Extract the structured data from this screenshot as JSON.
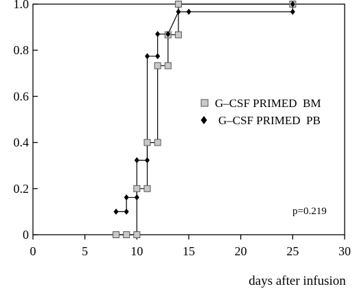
{
  "chart_data": {
    "type": "line",
    "step": "post",
    "title": "",
    "xlabel": "days after infusion",
    "ylabel": "",
    "xlim": [
      0,
      30
    ],
    "ylim": [
      0,
      1.0
    ],
    "xticks": [
      "0",
      "5",
      "10",
      "15",
      "20",
      "25",
      "30"
    ],
    "xtick_values": [
      0,
      5,
      10,
      15,
      20,
      25,
      30
    ],
    "yticks": [
      "0",
      "0.2",
      "0.4",
      "0.6",
      "0.8",
      "1.0"
    ],
    "ytick_values": [
      0,
      0.2,
      0.4,
      0.6,
      0.8,
      1.0
    ],
    "grid": false,
    "legend_position": "right",
    "annotation": "p=0.219",
    "series": [
      {
        "name": "G–CSF PRIMED  BM",
        "marker": "square",
        "color": "#c8c8c8",
        "points": [
          {
            "x": 8,
            "y": 0
          },
          {
            "x": 9,
            "y": 0
          },
          {
            "x": 10,
            "y": 0
          },
          {
            "x": 10,
            "y": 0.2
          },
          {
            "x": 11,
            "y": 0.2
          },
          {
            "x": 11,
            "y": 0.4
          },
          {
            "x": 12,
            "y": 0.4
          },
          {
            "x": 12,
            "y": 0.733
          },
          {
            "x": 13,
            "y": 0.733
          },
          {
            "x": 13,
            "y": 0.867
          },
          {
            "x": 14,
            "y": 0.867
          },
          {
            "x": 14,
            "y": 1.0
          },
          {
            "x": 25,
            "y": 1.0
          }
        ]
      },
      {
        "name": "G–CSF PRIMED  PB",
        "marker": "diamond",
        "color": "#000000",
        "points": [
          {
            "x": 8,
            "y": 0.1
          },
          {
            "x": 9,
            "y": 0.1
          },
          {
            "x": 9,
            "y": 0.162
          },
          {
            "x": 10,
            "y": 0.162
          },
          {
            "x": 10,
            "y": 0.323
          },
          {
            "x": 11,
            "y": 0.323
          },
          {
            "x": 11,
            "y": 0.774
          },
          {
            "x": 12,
            "y": 0.774
          },
          {
            "x": 12,
            "y": 0.87
          },
          {
            "x": 13,
            "y": 0.87
          },
          {
            "x": 14,
            "y": 0.967
          },
          {
            "x": 15,
            "y": 0.967
          },
          {
            "x": 25,
            "y": 0.967
          },
          {
            "x": 25,
            "y": 1.0
          }
        ]
      }
    ]
  }
}
